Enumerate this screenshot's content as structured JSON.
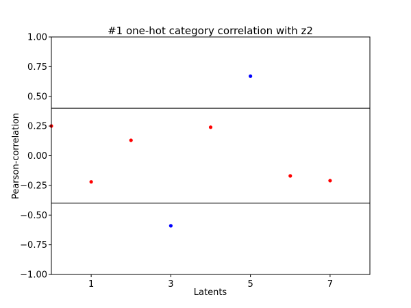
{
  "chart_data": {
    "type": "scatter",
    "title": "#1 one-hot category correlation with z2",
    "xlabel": "Latents",
    "ylabel": "Pearson-correlation",
    "xlim": [
      0,
      8
    ],
    "ylim": [
      -1.0,
      1.0
    ],
    "x_ticks": [
      1,
      3,
      5,
      7
    ],
    "y_ticks": [
      1.0,
      0.75,
      0.5,
      0.25,
      0.0,
      -0.25,
      -0.5,
      -0.75,
      -1.0
    ],
    "y_tick_labels": [
      "1.00",
      "0.75",
      "0.50",
      "0.25",
      "0.00",
      "−0.25",
      "−0.50",
      "−0.75",
      "−1.00"
    ],
    "thresholds": [
      0.4,
      -0.4
    ],
    "grid": false,
    "colors": {
      "significant": "#0000ff",
      "not_significant": "#ff0000",
      "threshold": "#000000"
    },
    "points": [
      {
        "x": 0,
        "y": 0.25,
        "color": "#ff0000"
      },
      {
        "x": 1,
        "y": -0.22,
        "color": "#ff0000"
      },
      {
        "x": 2,
        "y": 0.13,
        "color": "#ff0000"
      },
      {
        "x": 3,
        "y": -0.59,
        "color": "#0000ff"
      },
      {
        "x": 4,
        "y": 0.24,
        "color": "#ff0000"
      },
      {
        "x": 5,
        "y": 0.67,
        "color": "#0000ff"
      },
      {
        "x": 6,
        "y": -0.17,
        "color": "#ff0000"
      },
      {
        "x": 7,
        "y": -0.21,
        "color": "#ff0000"
      }
    ]
  }
}
